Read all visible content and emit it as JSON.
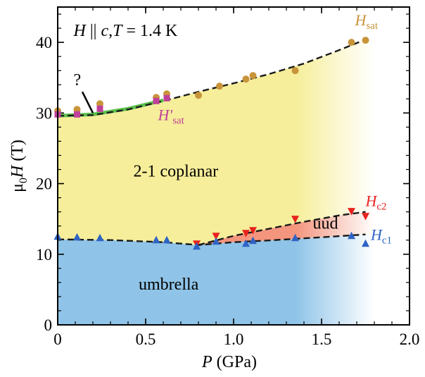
{
  "chart_data": {
    "type": "scatter",
    "title": "",
    "annotation": {
      "H": "H",
      "parallel": " || ",
      "c": "c",
      "comma": ",",
      "T": "T",
      "value": " = 1.4 K"
    },
    "xlabel": {
      "main": "P",
      "unit": " (GPa)"
    },
    "ylabel": {
      "mu": "μ",
      "sub": "0",
      "H": "H",
      "unit": " (T)"
    },
    "xlim": [
      0,
      2.0
    ],
    "ylim": [
      0,
      45
    ],
    "xticks": [
      0,
      0.5,
      1.0,
      1.5,
      2.0
    ],
    "xtick_labels": [
      "0",
      "0.5",
      "1.0",
      "1.5",
      "2.0"
    ],
    "yticks": [
      0,
      10,
      20,
      30,
      40
    ],
    "ytick_labels": [
      "0",
      "10",
      "20",
      "30",
      "40"
    ],
    "x_minor_step": 0.1,
    "y_minor_step": 2,
    "phase_labels": {
      "umbrella": "umbrella",
      "coplanar": "2-1 coplanar",
      "uud": "uud",
      "question": "?"
    },
    "colors": {
      "hsat": "#c8943a",
      "hsat_prime": "#c0409a",
      "hc2": "#e8231e",
      "hc1": "#2f63c4",
      "umbrella_fill": "#8fc4e8",
      "coplanar_fill": "#f6ee9a",
      "uud_fill": "#f4957e",
      "green_line": "#5cbf4c"
    },
    "series": [
      {
        "name": "H",
        "sub": "sat",
        "label_key": "hsat",
        "marker": "circle",
        "points": [
          [
            0.0,
            30.3
          ],
          [
            0.11,
            30.5
          ],
          [
            0.24,
            31.3
          ],
          [
            0.56,
            32.2
          ],
          [
            0.62,
            32.7
          ],
          [
            0.8,
            32.5
          ],
          [
            0.92,
            33.8
          ],
          [
            1.07,
            34.8
          ],
          [
            1.11,
            35.3
          ],
          [
            1.35,
            36.0
          ],
          [
            1.67,
            40.0
          ],
          [
            1.75,
            40.3
          ]
        ]
      },
      {
        "name": "H′",
        "sub": "sat",
        "label_key": "hsat_prime",
        "marker": "square",
        "points": [
          [
            0.0,
            29.8
          ],
          [
            0.11,
            29.8
          ],
          [
            0.24,
            30.6
          ],
          [
            0.56,
            31.7
          ],
          [
            0.62,
            32.1
          ]
        ]
      },
      {
        "name": "H",
        "sub": "c2",
        "label_key": "hc2",
        "marker": "triangle-down",
        "points": [
          [
            0.79,
            11.5
          ],
          [
            0.9,
            12.6
          ],
          [
            1.07,
            13.0
          ],
          [
            1.11,
            13.4
          ],
          [
            1.35,
            15.0
          ],
          [
            1.67,
            16.1
          ],
          [
            1.75,
            15.4
          ]
        ]
      },
      {
        "name": "H",
        "sub": "c1",
        "label_key": "hc1",
        "marker": "triangle-up",
        "points": [
          [
            0.0,
            12.5
          ],
          [
            0.11,
            12.4
          ],
          [
            0.24,
            12.3
          ],
          [
            0.56,
            12.0
          ],
          [
            0.62,
            12.0
          ],
          [
            0.79,
            11.1
          ],
          [
            0.9,
            11.8
          ],
          [
            1.07,
            11.5
          ],
          [
            1.11,
            11.9
          ],
          [
            1.35,
            12.3
          ],
          [
            1.67,
            12.6
          ],
          [
            1.75,
            11.5
          ]
        ]
      }
    ],
    "boundaries": {
      "hsat_line": [
        [
          0.0,
          29.6
        ],
        [
          0.2,
          29.7
        ],
        [
          0.4,
          30.5
        ],
        [
          0.6,
          31.7
        ],
        [
          0.8,
          33.0
        ],
        [
          1.0,
          34.2
        ],
        [
          1.2,
          35.5
        ],
        [
          1.4,
          37.0
        ],
        [
          1.6,
          38.9
        ],
        [
          1.75,
          40.4
        ]
      ],
      "hc1_line": [
        [
          0.0,
          12.1
        ],
        [
          0.3,
          12.0
        ],
        [
          0.6,
          11.7
        ],
        [
          0.8,
          11.3
        ],
        [
          1.0,
          11.7
        ],
        [
          1.2,
          11.95
        ],
        [
          1.5,
          12.4
        ],
        [
          1.75,
          12.8
        ]
      ],
      "hc2_line": [
        [
          0.8,
          11.3
        ],
        [
          1.0,
          12.6
        ],
        [
          1.2,
          13.6
        ],
        [
          1.4,
          14.6
        ],
        [
          1.6,
          15.5
        ],
        [
          1.75,
          16.0
        ]
      ],
      "green_segment": [
        [
          0.0,
          29.6
        ],
        [
          0.2,
          29.8
        ],
        [
          0.4,
          30.6
        ],
        [
          0.6,
          31.8
        ]
      ],
      "fade_start": 1.35,
      "fade_end": 1.8
    }
  }
}
